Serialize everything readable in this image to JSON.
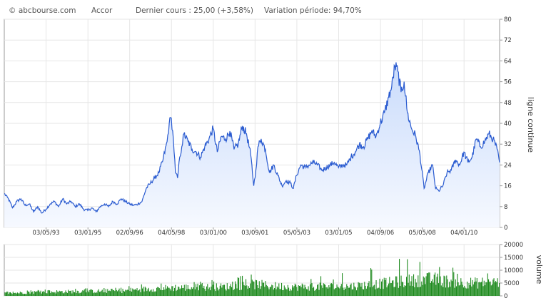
{
  "header": {
    "source": "© abcbourse.com",
    "ticker": "Accor",
    "last_price": "Dernier cours : 25,00 (+3,58%)",
    "variation": "Variation période: 94,70%"
  },
  "chart_data": [
    {
      "type": "area",
      "ylabel": "ligne continue",
      "xlabel": "",
      "title": "",
      "ylim": [
        0,
        80
      ],
      "yticks": [
        0,
        8,
        16,
        24,
        32,
        40,
        48,
        56,
        64,
        72,
        80
      ],
      "y_axis_position": "right",
      "grid": true,
      "x_tick_labels": [
        "03/05/93",
        "03/01/95",
        "02/09/96",
        "04/05/98",
        "03/01/00",
        "03/09/01",
        "05/05/03",
        "03/01/05",
        "04/09/06",
        "05/05/08",
        "04/01/10"
      ],
      "x_tick_dates": [
        "1993-05-03",
        "1995-01-03",
        "1996-09-02",
        "1998-05-04",
        "2000-01-03",
        "2001-09-03",
        "2003-05-05",
        "2005-01-03",
        "2006-09-04",
        "2008-05-05",
        "2010-01-04"
      ],
      "xlim": [
        "1991-09-02",
        "2011-06-06"
      ],
      "series": [
        {
          "x": [
            "1991-09-02",
            "1991-11-01",
            "1992-01-01",
            "1992-03-01",
            "1992-05-01",
            "1992-07-01",
            "1992-09-01",
            "1992-11-01",
            "1993-01-01",
            "1993-03-01",
            "1993-05-01",
            "1993-07-01",
            "1993-09-01",
            "1993-11-01",
            "1994-01-01",
            "1994-03-01",
            "1994-05-01",
            "1994-07-01",
            "1994-09-01",
            "1994-11-01",
            "1995-01-01",
            "1995-03-01",
            "1995-05-01",
            "1995-07-01",
            "1995-09-01",
            "1995-11-01",
            "1996-01-01",
            "1996-03-01",
            "1996-05-01",
            "1996-07-01",
            "1996-09-01",
            "1996-11-01",
            "1997-01-01",
            "1997-03-01",
            "1997-05-01",
            "1997-07-01",
            "1997-09-01",
            "1997-11-01",
            "1998-01-01",
            "1998-03-01",
            "1998-04-01",
            "1998-05-01",
            "1998-06-01",
            "1998-07-01",
            "1998-08-01",
            "1998-09-01",
            "1998-10-01",
            "1998-11-01",
            "1999-01-01",
            "1999-03-01",
            "1999-05-01",
            "1999-07-01",
            "1999-09-01",
            "1999-11-01",
            "2000-01-01",
            "2000-03-01",
            "2000-05-01",
            "2000-07-01",
            "2000-09-01",
            "2000-11-01",
            "2001-01-01",
            "2001-03-01",
            "2001-05-01",
            "2001-07-01",
            "2001-08-15",
            "2001-09-15",
            "2001-10-15",
            "2001-12-01",
            "2002-02-01",
            "2002-04-01",
            "2002-06-01",
            "2002-08-01",
            "2002-10-01",
            "2002-12-01",
            "2003-02-01",
            "2003-03-15",
            "2003-05-01",
            "2003-07-01",
            "2003-09-01",
            "2003-11-01",
            "2004-01-01",
            "2004-03-01",
            "2004-05-01",
            "2004-07-01",
            "2004-09-01",
            "2004-11-01",
            "2005-01-01",
            "2005-03-01",
            "2005-05-01",
            "2005-07-01",
            "2005-09-01",
            "2005-11-01",
            "2006-01-01",
            "2006-03-01",
            "2006-05-01",
            "2006-07-01",
            "2006-09-01",
            "2006-11-01",
            "2007-01-01",
            "2007-02-15",
            "2007-04-01",
            "2007-05-15",
            "2007-07-01",
            "2007-08-15",
            "2007-10-01",
            "2007-12-01",
            "2008-02-01",
            "2008-04-01",
            "2008-06-01",
            "2008-08-01",
            "2008-10-01",
            "2008-11-15",
            "2009-01-01",
            "2009-03-01",
            "2009-05-01",
            "2009-07-01",
            "2009-09-01",
            "2009-11-01",
            "2010-01-01",
            "2010-03-01",
            "2010-05-01",
            "2010-07-01",
            "2010-09-01",
            "2010-11-01",
            "2011-01-01",
            "2011-03-01",
            "2011-05-01",
            "2011-06-06"
          ],
          "values": [
            13,
            11,
            7.5,
            10,
            11,
            8.5,
            9,
            6,
            8,
            5.5,
            7,
            9,
            10,
            8,
            11,
            9,
            10,
            8,
            9,
            7,
            6.5,
            7.5,
            6,
            8,
            9,
            8,
            10,
            9,
            11,
            10,
            9,
            8.5,
            9,
            10,
            15,
            17,
            19,
            21,
            26,
            33,
            40,
            42,
            34,
            21,
            19,
            27,
            31,
            36,
            33,
            30,
            29,
            27,
            31,
            34,
            38,
            29,
            35,
            34,
            37,
            30,
            32,
            39,
            36,
            28,
            16,
            22,
            31,
            34,
            30,
            21,
            24,
            20,
            16,
            18,
            17,
            15,
            20,
            24,
            23,
            24,
            25,
            24,
            22,
            23,
            24,
            25,
            23,
            24,
            24,
            27,
            29,
            32,
            31,
            34,
            37,
            35,
            40,
            44,
            50,
            54,
            62,
            60,
            52,
            56,
            44,
            38,
            35,
            28,
            15,
            21,
            24,
            15,
            14,
            16,
            21,
            22,
            26,
            24,
            29,
            25,
            27,
            34,
            31,
            33,
            36,
            34,
            30,
            25
          ],
          "name": ""
        }
      ]
    },
    {
      "type": "bar",
      "ylabel": "volume",
      "xlabel": "",
      "title": "",
      "ylim": [
        0,
        20000
      ],
      "yticks": [
        0,
        5000,
        10000,
        15000,
        20000
      ],
      "y_axis_position": "right",
      "grid": true,
      "series": [
        {
          "x": [
            "1991-09-02",
            "1993-01-01",
            "1995-01-01",
            "1996-06-01",
            "1997-01-01",
            "1998-06-01",
            "1999-06-01",
            "2000-06-01",
            "2001-09-15",
            "2002-06-01",
            "2003-06-01",
            "2004-06-01",
            "2005-06-01",
            "2006-06-01",
            "2007-06-01",
            "2008-01-01",
            "2008-10-01",
            "2009-06-01",
            "2010-06-01",
            "2011-06-06"
          ],
          "values": [
            1000,
            1500,
            1800,
            2000,
            2500,
            3200,
            3300,
            3500,
            4500,
            3800,
            3500,
            3600,
            3700,
            4500,
            5500,
            6000,
            6500,
            5500,
            5000,
            5500
          ],
          "peaks": [
            1800,
            2500,
            3000,
            3500,
            4500,
            6000,
            6000,
            6500,
            9000,
            8000,
            8000,
            8500,
            10000,
            12000,
            16000,
            14000,
            13000,
            11000,
            11000,
            12000
          ],
          "name": ""
        }
      ]
    }
  ]
}
